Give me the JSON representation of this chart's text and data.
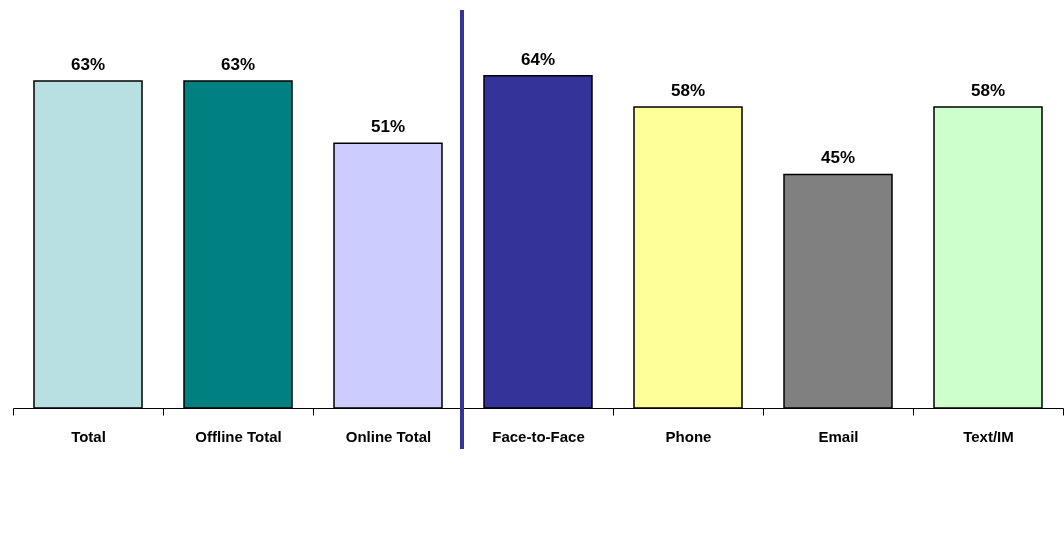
{
  "chart_data": {
    "type": "bar",
    "categories": [
      "Total",
      "Offline Total",
      "Online Total",
      "Face-to-Face",
      "Phone",
      "Email",
      "Text/IM"
    ],
    "values": [
      63,
      63,
      51,
      64,
      58,
      45,
      58
    ],
    "colors": [
      "#b8e0e3",
      "#008080",
      "#ccccff",
      "#333399",
      "#ffff99",
      "#808080",
      "#ccffcc"
    ],
    "value_labels": [
      "63%",
      "63%",
      "51%",
      "64%",
      "58%",
      "45%",
      "58%"
    ],
    "grid": false
  }
}
